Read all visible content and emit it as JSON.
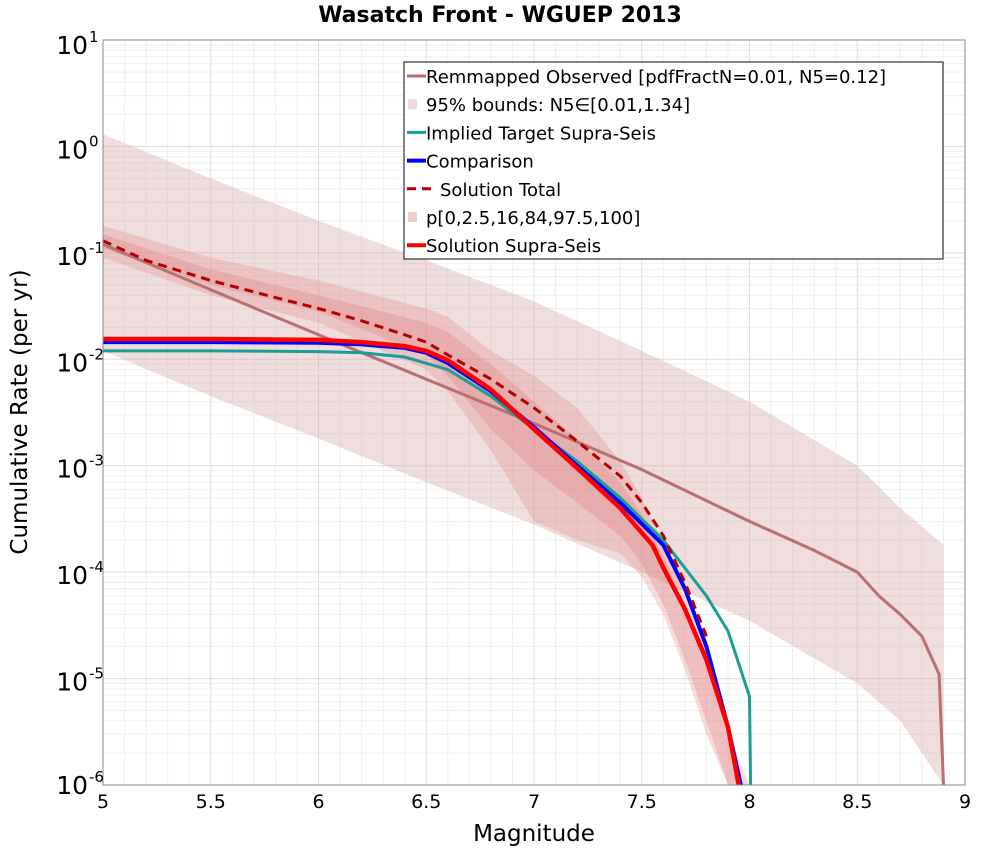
{
  "chart_data": {
    "type": "line",
    "title": "Wasatch Front - WGUEP 2013",
    "xlabel": "Magnitude",
    "ylabel": "Cumulative Rate (per yr)",
    "xlim": [
      5,
      9
    ],
    "ylim": [
      1e-06,
      10
    ],
    "yscale": "log",
    "grid": true,
    "legend_position": "top-right",
    "x_ticks": [
      "5",
      "5.5",
      "6",
      "6.5",
      "7",
      "7.5",
      "8",
      "8.5",
      "9"
    ],
    "y_ticks": [
      {
        "base": "10",
        "exp": "1",
        "value": 10
      },
      {
        "base": "10",
        "exp": "0",
        "value": 1
      },
      {
        "base": "10",
        "exp": "-1",
        "value": 0.1
      },
      {
        "base": "10",
        "exp": "-2",
        "value": 0.01
      },
      {
        "base": "10",
        "exp": "-3",
        "value": 0.001
      },
      {
        "base": "10",
        "exp": "-4",
        "value": 0.0001
      },
      {
        "base": "10",
        "exp": "-5",
        "value": 1e-05
      },
      {
        "base": "10",
        "exp": "-6",
        "value": 1e-06
      }
    ],
    "colors": {
      "observed": "#b87070",
      "bounds_fill": "#d8a6a6",
      "target": "#1a9e96",
      "comparison": "#0000ff",
      "solution_total": "#b40000",
      "percentile_fill": "#e08080",
      "supra": "#ff0000"
    },
    "legend": [
      {
        "label": "Remmapped Observed [pdfFractN=0.01, N5=0.12]",
        "style": "line",
        "key": "observed"
      },
      {
        "label": "95% bounds: N5∈[0.01,1.34]",
        "style": "fill",
        "key": "bounds_fill"
      },
      {
        "label": "Implied Target Supra-Seis",
        "style": "line",
        "key": "target"
      },
      {
        "label": "Comparison",
        "style": "thick-line",
        "key": "comparison"
      },
      {
        "label": "Solution Total",
        "style": "dashed",
        "key": "solution_total"
      },
      {
        "label": "p[0,2.5,16,84,97.5,100]",
        "style": "fill",
        "key": "percentile_fill"
      },
      {
        "label": "Solution Supra-Seis",
        "style": "thick-line",
        "key": "supra"
      }
    ],
    "bounds_band": {
      "x": [
        5,
        5.5,
        6,
        6.5,
        7,
        7.5,
        8,
        8.5,
        8.7,
        8.9
      ],
      "upper": [
        1.3,
        0.5,
        0.2,
        0.085,
        0.035,
        0.012,
        0.004,
        0.001,
        0.0004,
        0.00018
      ],
      "lower": [
        0.012,
        0.0045,
        0.0018,
        0.0007,
        0.00028,
        0.0001,
        3.5e-05,
        9e-06,
        4e-06,
        1e-06
      ]
    },
    "percentile_outer": {
      "x": [
        5,
        5.5,
        6,
        6.5,
        6.6,
        6.8,
        7,
        7.2,
        7.4,
        7.5,
        7.6,
        7.7,
        7.8,
        7.9,
        8
      ],
      "upper": [
        0.18,
        0.09,
        0.055,
        0.03,
        0.025,
        0.012,
        0.007,
        0.0035,
        0.0011,
        0.0005,
        0.00018,
        7e-05,
        2e-05,
        3e-06,
        1e-06
      ],
      "lower": [
        0.09,
        0.04,
        0.022,
        0.008,
        0.005,
        0.0014,
        0.0003,
        0.0002,
        0.00015,
        9e-05,
        4e-05,
        1.2e-05,
        3e-06,
        1e-06,
        1e-06
      ]
    },
    "percentile_inner": {
      "x": [
        5,
        5.5,
        6,
        6.5,
        6.6,
        6.8,
        7,
        7.2,
        7.4,
        7.5,
        7.6,
        7.7,
        7.8,
        7.9,
        7.95
      ],
      "upper": [
        0.15,
        0.07,
        0.04,
        0.022,
        0.018,
        0.009,
        0.004,
        0.0018,
        0.0007,
        0.00035,
        0.00014,
        5e-05,
        1.5e-05,
        3e-06,
        1e-06
      ],
      "lower": [
        0.11,
        0.05,
        0.028,
        0.011,
        0.007,
        0.0022,
        0.0009,
        0.00045,
        0.00022,
        0.00012,
        5e-05,
        1.5e-05,
        4e-06,
        1e-06,
        1e-06
      ]
    },
    "series": [
      {
        "name": "Remmapped Observed [pdfFractN=0.01, N5=0.12]",
        "key": "observed",
        "x": [
          5,
          5.5,
          6,
          6.5,
          7,
          7.5,
          8,
          8.3,
          8.5,
          8.6,
          8.7,
          8.8,
          8.88,
          8.9
        ],
        "y": [
          0.12,
          0.045,
          0.017,
          0.0065,
          0.0025,
          0.00092,
          0.0003,
          0.00016,
          0.0001,
          6e-05,
          4e-05,
          2.5e-05,
          1.1e-05,
          1e-06
        ]
      },
      {
        "name": "Implied Target Supra-Seis",
        "key": "target",
        "x": [
          5,
          5.5,
          6,
          6.2,
          6.4,
          6.6,
          6.8,
          7,
          7.2,
          7.4,
          7.6,
          7.8,
          7.9,
          8,
          8.005
        ],
        "y": [
          0.012,
          0.012,
          0.0118,
          0.0115,
          0.0105,
          0.008,
          0.0045,
          0.0022,
          0.0011,
          0.0005,
          0.0002,
          6e-05,
          2.8e-05,
          6.8e-06,
          1e-06
        ]
      },
      {
        "name": "Comparison",
        "key": "comparison",
        "x": [
          5,
          5.5,
          6,
          6.2,
          6.4,
          6.5,
          6.6,
          6.8,
          7,
          7.2,
          7.4,
          7.6,
          7.7,
          7.8,
          7.9,
          7.96
        ],
        "y": [
          0.0145,
          0.0145,
          0.0143,
          0.0138,
          0.0128,
          0.0115,
          0.0092,
          0.005,
          0.0023,
          0.001,
          0.00045,
          0.00018,
          7e-05,
          2e-05,
          3.5e-06,
          1e-06
        ]
      },
      {
        "name": "Solution Total",
        "key": "solution_total",
        "x": [
          5,
          5.2,
          5.5,
          5.8,
          6,
          6.2,
          6.4,
          6.5,
          6.6,
          6.8,
          7,
          7.2,
          7.4,
          7.5,
          7.6,
          7.7,
          7.8
        ],
        "y": [
          0.13,
          0.085,
          0.055,
          0.038,
          0.03,
          0.023,
          0.017,
          0.0145,
          0.011,
          0.0065,
          0.0035,
          0.0017,
          0.0008,
          0.00045,
          0.00022,
          8e-05,
          2.5e-05
        ]
      },
      {
        "name": "Solution Supra-Seis",
        "key": "supra",
        "x": [
          5,
          5.5,
          6,
          6.2,
          6.4,
          6.5,
          6.6,
          6.8,
          7,
          7.2,
          7.4,
          7.55,
          7.6,
          7.7,
          7.8,
          7.9,
          7.95
        ],
        "y": [
          0.0155,
          0.0155,
          0.0152,
          0.0145,
          0.0133,
          0.012,
          0.0098,
          0.0052,
          0.0022,
          0.00095,
          0.0004,
          0.00018,
          0.00011,
          4.5e-05,
          1.5e-05,
          3.5e-06,
          1e-06
        ]
      }
    ]
  }
}
